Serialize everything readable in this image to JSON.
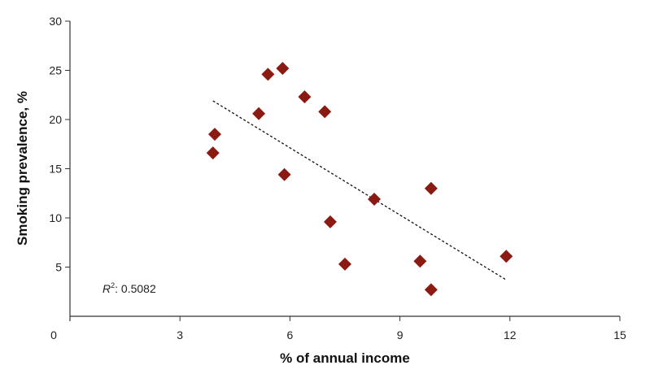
{
  "chart_data": {
    "type": "scatter",
    "xlabel": "% of annual income",
    "ylabel": "Smoking prevalence, %",
    "xlim": [
      0,
      15
    ],
    "ylim": [
      0,
      30
    ],
    "x_ticks": [
      0,
      3,
      6,
      9,
      12,
      15
    ],
    "y_ticks": [
      5,
      10,
      15,
      20,
      25,
      30
    ],
    "grid": false,
    "marker_color": "#8b1a12",
    "trendline_color": "#111111",
    "points": [
      {
        "x": 3.9,
        "y": 16.6
      },
      {
        "x": 3.95,
        "y": 18.5
      },
      {
        "x": 5.15,
        "y": 20.6
      },
      {
        "x": 5.4,
        "y": 24.6
      },
      {
        "x": 5.8,
        "y": 25.2
      },
      {
        "x": 5.85,
        "y": 14.4
      },
      {
        "x": 6.4,
        "y": 22.3
      },
      {
        "x": 6.95,
        "y": 20.8
      },
      {
        "x": 7.1,
        "y": 9.6
      },
      {
        "x": 7.5,
        "y": 5.3
      },
      {
        "x": 8.3,
        "y": 11.9
      },
      {
        "x": 9.55,
        "y": 5.6
      },
      {
        "x": 9.85,
        "y": 13.0
      },
      {
        "x": 9.85,
        "y": 2.7
      },
      {
        "x": 11.9,
        "y": 6.1
      }
    ],
    "trendline": {
      "x": [
        3.9,
        11.9
      ],
      "y": [
        21.9,
        3.7
      ]
    },
    "annotation": {
      "r_label": "R",
      "r_superscript": "2",
      "r_value": ": 0.5082"
    }
  }
}
